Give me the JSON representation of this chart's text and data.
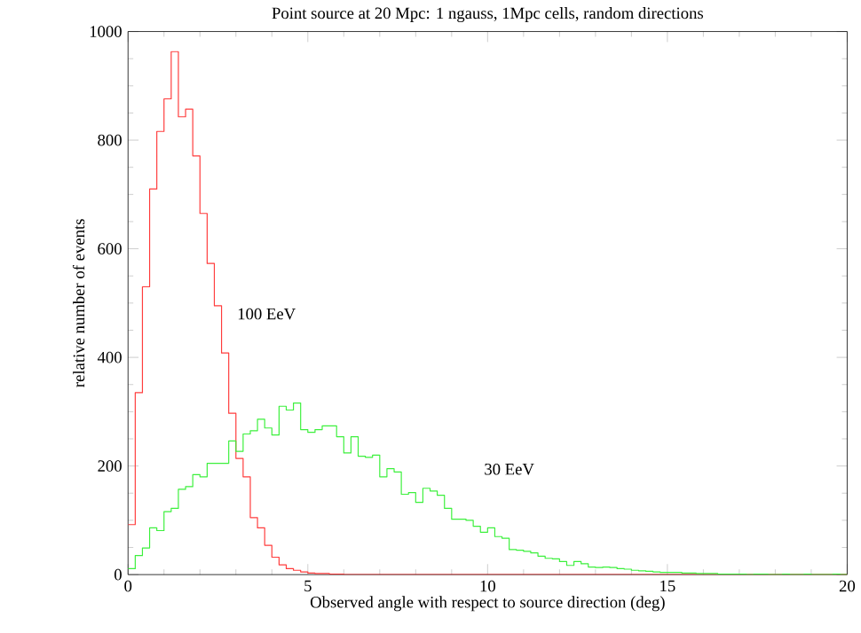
{
  "chart_data": {
    "type": "histogram",
    "title": "Point source at 20 Mpc: 1 ngauss, 1Mpc cells, random directions",
    "xlabel": "Observed angle with respect to source direction (deg)",
    "ylabel": "relative number of events",
    "bins": [
      0,
      0.2,
      0.4,
      0.6,
      0.8,
      1,
      1.2,
      1.4,
      1.6,
      1.8,
      2,
      2.2,
      2.4,
      2.6,
      2.8,
      3,
      3.2,
      3.4,
      3.6,
      3.8,
      4,
      4.2,
      4.4,
      4.6,
      4.8,
      5,
      5.2,
      5.4,
      5.6,
      5.8,
      6,
      6.2,
      6.4,
      6.6,
      6.8,
      7,
      7.2,
      7.4,
      7.6,
      7.8,
      8,
      8.2,
      8.4,
      8.6,
      8.8,
      9,
      9.2,
      9.4,
      9.6,
      9.8,
      10,
      10.2,
      10.4,
      10.6,
      10.8,
      11,
      11.2,
      11.4,
      11.6,
      11.8,
      12,
      12.2,
      12.4,
      12.6,
      12.8,
      13,
      13.2,
      13.4,
      13.6,
      13.8,
      14,
      14.2,
      14.4,
      14.6,
      14.8,
      15,
      15.2,
      15.4,
      15.6,
      15.8,
      16,
      16.2,
      16.4,
      16.6,
      16.8,
      17,
      17.2,
      17.4,
      17.6,
      17.8,
      18,
      18.2,
      18.4,
      18.6,
      18.8,
      19,
      19.2,
      19.4,
      19.6,
      19.8,
      20
    ],
    "series": [
      {
        "name": "100 EeV",
        "color": "#ff3c3c",
        "values": [
          92,
          335,
          530,
          710,
          816,
          876,
          963,
          843,
          857,
          771,
          665,
          573,
          495,
          408,
          297,
          214,
          180,
          105,
          86,
          54,
          32,
          18,
          11,
          8,
          5,
          3,
          2,
          2,
          1,
          1,
          0,
          0,
          0,
          0,
          0,
          0,
          0,
          0,
          0,
          0,
          0,
          0,
          0,
          0,
          0,
          0,
          0,
          0,
          0,
          0,
          0,
          0,
          0,
          0,
          0,
          0,
          0,
          0,
          0,
          0,
          0,
          0,
          0,
          0,
          0,
          0,
          0,
          0,
          0,
          0,
          0,
          0,
          0,
          0,
          0,
          0,
          0,
          0,
          0,
          0,
          0,
          0,
          0,
          0,
          0,
          0,
          0,
          0,
          0,
          0,
          0,
          0,
          0,
          0,
          0,
          0,
          0,
          0,
          0,
          0
        ]
      },
      {
        "name": "30 EeV",
        "color": "#3cf03c",
        "values": [
          11,
          35,
          49,
          86,
          81,
          116,
          122,
          157,
          162,
          184,
          180,
          205,
          205,
          205,
          246,
          227,
          259,
          265,
          286,
          270,
          257,
          310,
          303,
          316,
          267,
          262,
          267,
          274,
          274,
          254,
          224,
          254,
          218,
          216,
          220,
          180,
          195,
          189,
          148,
          151,
          133,
          159,
          154,
          146,
          122,
          102,
          102,
          100,
          89,
          78,
          86,
          70,
          67,
          46,
          45,
          43,
          40,
          34,
          30,
          29,
          24,
          17,
          24,
          20,
          14,
          13,
          14,
          13,
          11,
          10,
          8,
          7,
          6,
          5,
          4,
          4,
          4,
          3,
          3,
          2,
          2,
          2,
          1,
          1,
          1,
          1,
          0,
          1,
          1,
          0,
          0,
          1,
          0,
          0,
          1,
          0,
          0,
          0,
          1,
          0
        ]
      }
    ],
    "xlim": [
      0,
      20
    ],
    "ylim": [
      0,
      1000
    ],
    "xticks": [
      0,
      5,
      10,
      15,
      20
    ],
    "yticks": [
      0,
      200,
      400,
      600,
      800,
      1000
    ],
    "grid": false,
    "legend": false
  }
}
